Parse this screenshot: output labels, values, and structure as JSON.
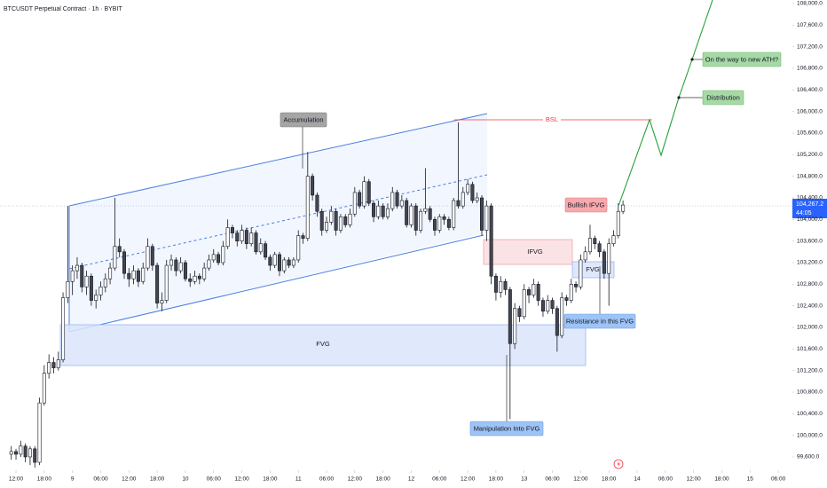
{
  "chart_data": {
    "type": "candlestick",
    "title": "BTCUSDT Perpetual Contract · 1h · BYBIT",
    "up_color": "#ffffff",
    "down_color": "#434651",
    "outline_color": "#131722",
    "grid": false,
    "last_price_label": "104,267.2",
    "countdown": "44:05",
    "annotations": {
      "accumulation": "Accumulation",
      "bsl": "BSL",
      "ifvg": "IFVG",
      "bullish_ifvg": "Bullish IFVG",
      "fvg_large": "FVG",
      "fvg_small": "FVG",
      "resistance": "Resistance in this FVG",
      "manipulation": "Manipulation Into FVG",
      "distribution": "Distribution",
      "ath": "On the way to new ATH?"
    },
    "xlim": [
      -3.4,
      165
    ],
    "ylim": [
      99386,
      108066
    ],
    "xticks": [
      {
        "value": 0,
        "label": "12:00"
      },
      {
        "value": 6,
        "label": "18:00"
      },
      {
        "value": 12,
        "label": "9"
      },
      {
        "value": 18,
        "label": "06:00"
      },
      {
        "value": 24,
        "label": "12:00"
      },
      {
        "value": 30,
        "label": "18:00"
      },
      {
        "value": 36,
        "label": "10"
      },
      {
        "value": 42,
        "label": "06:00"
      },
      {
        "value": 48,
        "label": "12:00"
      },
      {
        "value": 54,
        "label": "18:00"
      },
      {
        "value": 60,
        "label": "11"
      },
      {
        "value": 66,
        "label": "06:00"
      },
      {
        "value": 72,
        "label": "12:00"
      },
      {
        "value": 78,
        "label": "18:00"
      },
      {
        "value": 84,
        "label": "12"
      },
      {
        "value": 90,
        "label": "06:00"
      },
      {
        "value": 96,
        "label": "12:00"
      },
      {
        "value": 102,
        "label": "18:00"
      },
      {
        "value": 108,
        "label": "13"
      },
      {
        "value": 114,
        "label": "06:00"
      },
      {
        "value": 120,
        "label": "12:00"
      },
      {
        "value": 126,
        "label": "18:00"
      },
      {
        "value": 132,
        "label": "14"
      },
      {
        "value": 138,
        "label": "06:00"
      },
      {
        "value": 144,
        "label": "12:00"
      },
      {
        "value": 150,
        "label": "18:00"
      },
      {
        "value": 156,
        "label": "15"
      },
      {
        "value": 162,
        "label": "06:00"
      }
    ],
    "yticks": [
      {
        "value": 99600,
        "label": "99,600.0"
      },
      {
        "value": 100000,
        "label": "100,000.0"
      },
      {
        "value": 100400,
        "label": "100,400.0"
      },
      {
        "value": 100800,
        "label": "100,800.0"
      },
      {
        "value": 101200,
        "label": "101,200.0"
      },
      {
        "value": 101600,
        "label": "101,600.0"
      },
      {
        "value": 102000,
        "label": "102,000.0"
      },
      {
        "value": 102400,
        "label": "102,400.0"
      },
      {
        "value": 102800,
        "label": "102,800.0"
      },
      {
        "value": 103200,
        "label": "103,200.0"
      },
      {
        "value": 103600,
        "label": "103,600.0"
      },
      {
        "value": 104000,
        "label": "104,000.0"
      },
      {
        "value": 104400,
        "label": "104,400.0"
      },
      {
        "value": 104800,
        "label": "104,800.0"
      },
      {
        "value": 105200,
        "label": "105,200.0"
      },
      {
        "value": 105600,
        "label": "105,600.0"
      },
      {
        "value": 106000,
        "label": "106,000.0"
      },
      {
        "value": 106400,
        "label": "106,400.0"
      },
      {
        "value": 106800,
        "label": "106,800.0"
      },
      {
        "value": 107200,
        "label": "107,200.0"
      },
      {
        "value": 107600,
        "label": "107,600.0"
      },
      {
        "value": 108000,
        "label": "108,000.0"
      }
    ],
    "x": [
      -1,
      0,
      1,
      2,
      3,
      4,
      5,
      6,
      7,
      8,
      9,
      10,
      11,
      12,
      13,
      14,
      15,
      16,
      17,
      18,
      19,
      20,
      21,
      22,
      23,
      24,
      25,
      26,
      27,
      28,
      29,
      30,
      31,
      32,
      33,
      34,
      35,
      36,
      37,
      38,
      39,
      40,
      41,
      42,
      43,
      44,
      45,
      46,
      47,
      48,
      49,
      50,
      51,
      52,
      53,
      54,
      55,
      56,
      57,
      58,
      59,
      60,
      61,
      62,
      63,
      64,
      65,
      66,
      67,
      68,
      69,
      70,
      71,
      72,
      73,
      74,
      75,
      76,
      77,
      78,
      79,
      80,
      81,
      82,
      83,
      84,
      85,
      86,
      87,
      88,
      89,
      90,
      91,
      92,
      93,
      94,
      95,
      96,
      97,
      98,
      99,
      100,
      101,
      102,
      103,
      104,
      105,
      106,
      107,
      108,
      109,
      110,
      111,
      112,
      113,
      114,
      115,
      116,
      117,
      118,
      119,
      120,
      121,
      122,
      123,
      124,
      125,
      126,
      127,
      128,
      129
    ],
    "candles": [
      [
        99650,
        99800,
        99550,
        99700
      ],
      [
        99700,
        99750,
        99550,
        99650
      ],
      [
        99650,
        99900,
        99600,
        99800
      ],
      [
        99800,
        99850,
        99500,
        99600
      ],
      [
        99600,
        99800,
        99450,
        99750
      ],
      [
        99750,
        99800,
        99400,
        99500
      ],
      [
        99500,
        100700,
        99450,
        100600
      ],
      [
        100600,
        101300,
        100550,
        101150
      ],
      [
        101150,
        101500,
        101050,
        101350
      ],
      [
        101350,
        101450,
        101150,
        101250
      ],
      [
        101250,
        101550,
        101200,
        101400
      ],
      [
        101400,
        102650,
        101350,
        102550
      ],
      [
        102550,
        104250,
        102450,
        102850
      ],
      [
        102850,
        103150,
        102600,
        103050
      ],
      [
        103050,
        103300,
        102900,
        103150
      ],
      [
        103150,
        103200,
        102650,
        102750
      ],
      [
        102750,
        103050,
        102600,
        102950
      ],
      [
        102950,
        103000,
        102400,
        102500
      ],
      [
        102500,
        102700,
        102350,
        102600
      ],
      [
        102600,
        102850,
        102500,
        102750
      ],
      [
        102750,
        103000,
        102650,
        102900
      ],
      [
        102900,
        103200,
        102800,
        103100
      ],
      [
        103100,
        104400,
        103050,
        103500
      ],
      [
        103500,
        103650,
        103300,
        103400
      ],
      [
        103400,
        103450,
        102900,
        103000
      ],
      [
        103000,
        103100,
        102750,
        102900
      ],
      [
        102900,
        103150,
        102800,
        103050
      ],
      [
        103050,
        103100,
        102750,
        102850
      ],
      [
        102850,
        103200,
        102800,
        103100
      ],
      [
        103100,
        103650,
        103050,
        103500
      ],
      [
        103500,
        103550,
        103050,
        103150
      ],
      [
        103150,
        103200,
        102350,
        102450
      ],
      [
        102450,
        102650,
        102300,
        102500
      ],
      [
        102500,
        103250,
        102450,
        103150
      ],
      [
        103150,
        103350,
        103050,
        103250
      ],
      [
        103250,
        103300,
        102950,
        103050
      ],
      [
        103050,
        103300,
        103000,
        103200
      ],
      [
        103200,
        103250,
        102850,
        102900
      ],
      [
        102900,
        103000,
        102750,
        102850
      ],
      [
        102850,
        103050,
        102800,
        102950
      ],
      [
        102950,
        103000,
        102800,
        102900
      ],
      [
        102900,
        103200,
        102850,
        103100
      ],
      [
        103100,
        103350,
        103050,
        103250
      ],
      [
        103250,
        103450,
        103200,
        103350
      ],
      [
        103350,
        103400,
        103150,
        103200
      ],
      [
        103200,
        103600,
        103150,
        103500
      ],
      [
        103500,
        104000,
        103450,
        103850
      ],
      [
        103850,
        103900,
        103650,
        103750
      ],
      [
        103750,
        103800,
        103500,
        103600
      ],
      [
        103600,
        103900,
        103550,
        103800
      ],
      [
        103800,
        103850,
        103450,
        103550
      ],
      [
        103550,
        103850,
        103500,
        103750
      ],
      [
        103750,
        103800,
        103350,
        103400
      ],
      [
        103400,
        103650,
        103350,
        103550
      ],
      [
        103550,
        103600,
        103250,
        103300
      ],
      [
        103300,
        103350,
        103050,
        103150
      ],
      [
        103150,
        103400,
        103100,
        103350
      ],
      [
        103350,
        103400,
        102950,
        103050
      ],
      [
        103050,
        103300,
        103000,
        103250
      ],
      [
        103250,
        103300,
        103100,
        103150
      ],
      [
        103150,
        103300,
        103100,
        103250
      ],
      [
        103250,
        103800,
        103200,
        103700
      ],
      [
        103700,
        103750,
        103550,
        103650
      ],
      [
        103650,
        105250,
        103600,
        104800
      ],
      [
        104800,
        104850,
        104350,
        104450
      ],
      [
        104450,
        104500,
        104050,
        104150
      ],
      [
        104150,
        104200,
        103700,
        103800
      ],
      [
        103800,
        104050,
        103750,
        103950
      ],
      [
        103950,
        104250,
        103900,
        104150
      ],
      [
        104150,
        104200,
        103700,
        103800
      ],
      [
        103800,
        104100,
        103750,
        104050
      ],
      [
        104050,
        104100,
        103850,
        103900
      ],
      [
        103900,
        104200,
        103850,
        104100
      ],
      [
        104100,
        104600,
        104050,
        104500
      ],
      [
        104500,
        104550,
        104200,
        104250
      ],
      [
        104250,
        104800,
        104200,
        104700
      ],
      [
        104700,
        104750,
        104250,
        104300
      ],
      [
        104300,
        104350,
        103950,
        104050
      ],
      [
        104050,
        104350,
        104000,
        104250
      ],
      [
        104250,
        104300,
        104000,
        104050
      ],
      [
        104050,
        104300,
        104000,
        104200
      ],
      [
        104200,
        104600,
        104150,
        104500
      ],
      [
        104500,
        104550,
        104200,
        104250
      ],
      [
        104250,
        104450,
        104200,
        104350
      ],
      [
        104350,
        104400,
        103850,
        103900
      ],
      [
        103900,
        104300,
        103850,
        104250
      ],
      [
        104250,
        104300,
        103700,
        103800
      ],
      [
        103800,
        104200,
        103750,
        104150
      ],
      [
        104150,
        104950,
        104100,
        104200
      ],
      [
        104200,
        104250,
        103950,
        104000
      ],
      [
        104000,
        104050,
        103700,
        103800
      ],
      [
        103800,
        104100,
        103750,
        104050
      ],
      [
        104050,
        104100,
        103900,
        104000
      ],
      [
        104000,
        104050,
        103800,
        103850
      ],
      [
        103850,
        104400,
        103800,
        104350
      ],
      [
        104350,
        105800,
        104200,
        104250
      ],
      [
        104250,
        104600,
        104200,
        104500
      ],
      [
        104500,
        104750,
        104450,
        104650
      ],
      [
        104650,
        104700,
        104300,
        104350
      ],
      [
        104350,
        104500,
        104300,
        104400
      ],
      [
        104400,
        104450,
        103700,
        103800
      ],
      [
        103800,
        104350,
        103600,
        104250
      ],
      [
        104250,
        104300,
        102800,
        102950
      ],
      [
        102950,
        103000,
        102500,
        102650
      ],
      [
        102650,
        102950,
        102550,
        102850
      ],
      [
        102850,
        102900,
        102600,
        102700
      ],
      [
        102700,
        102750,
        100300,
        101700
      ],
      [
        101700,
        102450,
        101600,
        102350
      ],
      [
        102350,
        102400,
        102100,
        102200
      ],
      [
        102200,
        102800,
        102150,
        102700
      ],
      [
        102700,
        102750,
        102450,
        102600
      ],
      [
        102600,
        102900,
        102550,
        102800
      ],
      [
        102800,
        102850,
        102400,
        102500
      ],
      [
        102500,
        102550,
        102200,
        102300
      ],
      [
        102300,
        102600,
        102250,
        102500
      ],
      [
        102500,
        102550,
        102250,
        102350
      ],
      [
        102350,
        102400,
        101550,
        101850
      ],
      [
        101850,
        102650,
        101800,
        102550
      ],
      [
        102550,
        102600,
        102400,
        102500
      ],
      [
        102500,
        102900,
        102450,
        102800
      ],
      [
        102800,
        102850,
        102650,
        102750
      ],
      [
        102750,
        103350,
        102700,
        103250
      ],
      [
        103250,
        103500,
        103200,
        103400
      ],
      [
        103400,
        103900,
        103350,
        103650
      ],
      [
        103650,
        103700,
        103450,
        103550
      ],
      [
        103550,
        103600,
        103300,
        103400
      ],
      [
        103400,
        103450,
        102900,
        103000
      ],
      [
        103000,
        103650,
        102400,
        103550
      ],
      [
        103550,
        103800,
        103500,
        103700
      ],
      [
        103700,
        104300,
        103650,
        104150
      ],
      [
        104150,
        104350,
        104100,
        104267.2
      ]
    ]
  }
}
